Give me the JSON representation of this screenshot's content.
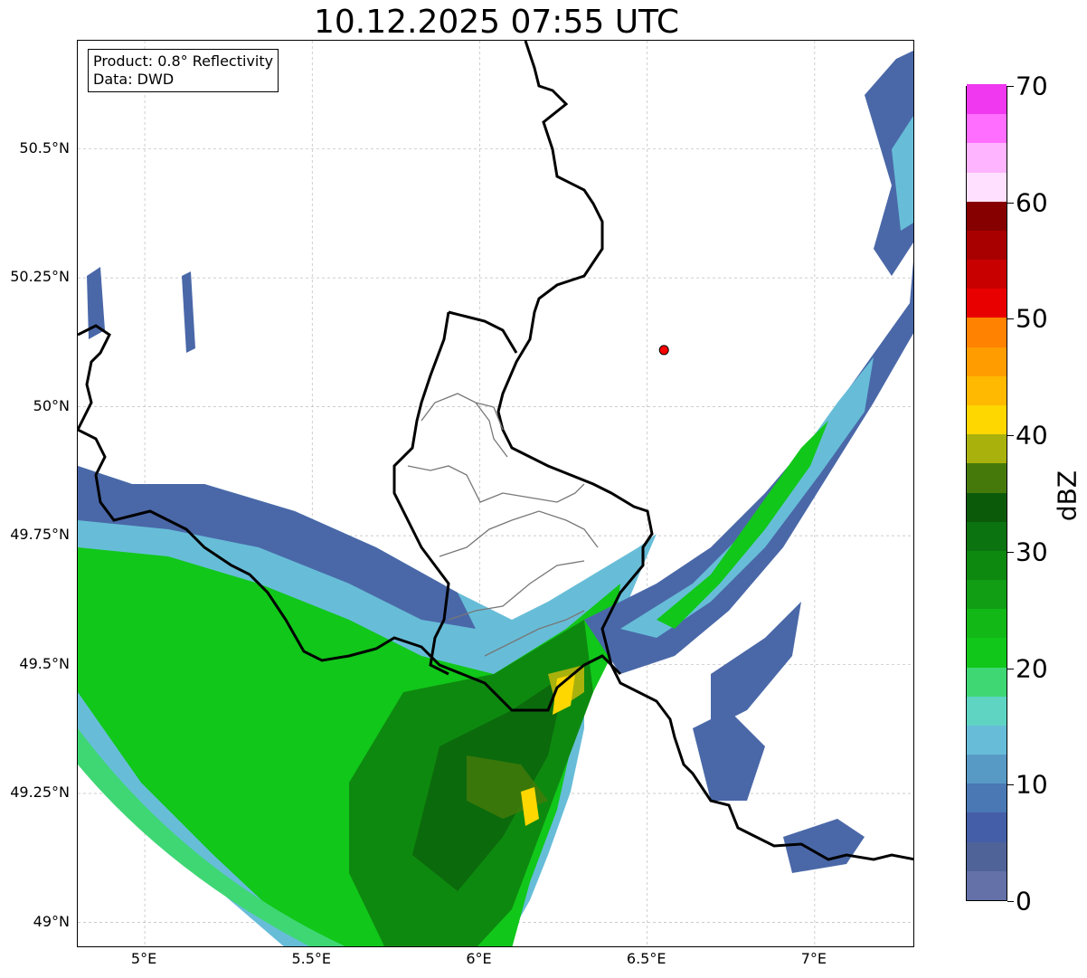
{
  "title": "10.12.2025 07:55 UTC",
  "info_box": {
    "product": "Product: 0.8° Reflectivity",
    "data_source": "Data: DWD"
  },
  "map": {
    "lon_range": [
      4.8,
      7.3
    ],
    "lat_range": [
      48.95,
      50.71
    ],
    "y_ticks": [
      {
        "label": "50.5°N",
        "lat": 50.5
      },
      {
        "label": "50.25°N",
        "lat": 50.25
      },
      {
        "label": "50°N",
        "lat": 50.0
      },
      {
        "label": "49.75°N",
        "lat": 49.75
      },
      {
        "label": "49.5°N",
        "lat": 49.5
      },
      {
        "label": "49.25°N",
        "lat": 49.25
      },
      {
        "label": "49°N",
        "lat": 49.0
      }
    ],
    "x_ticks": [
      {
        "label": "5°E",
        "lon": 5.0
      },
      {
        "label": "5.5°E",
        "lon": 5.5
      },
      {
        "label": "6°E",
        "lon": 6.0
      },
      {
        "label": "6.5°E",
        "lon": 6.5
      },
      {
        "label": "7°E",
        "lon": 7.0
      }
    ],
    "radar_site": {
      "lon": 6.55,
      "lat": 50.11,
      "color": "#ff0000"
    }
  },
  "colorbar": {
    "label": "dBZ",
    "min": 0,
    "max": 70,
    "ticks": [
      "0",
      "10",
      "20",
      "30",
      "40",
      "50",
      "60",
      "70"
    ],
    "colors": [
      "#6371a8",
      "#4f6399",
      "#445ea7",
      "#4a78b4",
      "#589ac6",
      "#67bdd8",
      "#5fd4c3",
      "#3ed774",
      "#11c71a",
      "#11b816",
      "#119e14",
      "#0e890f",
      "#0b7310",
      "#0b5a0a",
      "#457a0a",
      "#a9b10c",
      "#fed700",
      "#ffb900",
      "#ff9d00",
      "#ff8200",
      "#e80000",
      "#c90000",
      "#a80000",
      "#860000",
      "#ffe1ff",
      "#ffb4ff",
      "#ff6eff",
      "#ef38ef"
    ]
  }
}
